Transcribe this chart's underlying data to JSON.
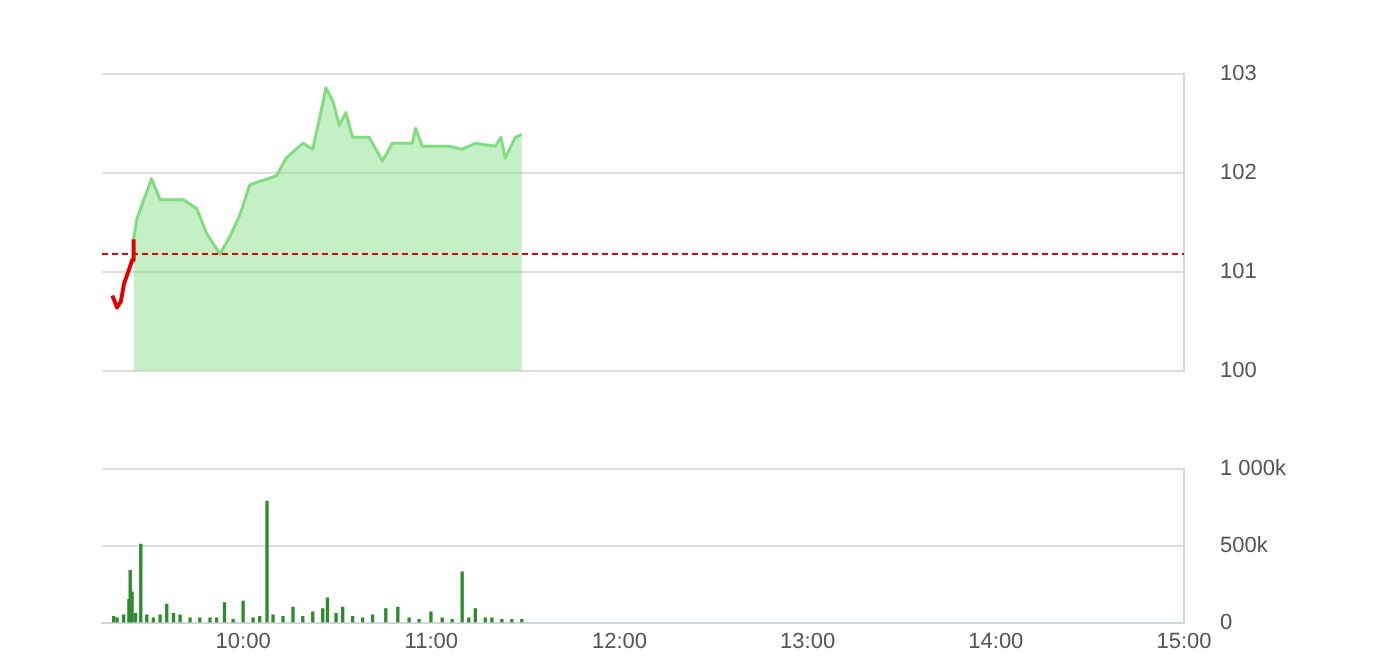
{
  "chart_data": [
    {
      "type": "area",
      "xlim": [
        9.25,
        15
      ],
      "ylim": [
        100,
        103
      ],
      "yticks": [
        100,
        101,
        102,
        103
      ],
      "tick_labels": "y",
      "grid": "y",
      "legend": false,
      "marker": "none",
      "ref_lines": [
        {
          "axis": "y",
          "value": 101.18,
          "color": "#e00000",
          "line_style": "dashed"
        }
      ],
      "series": [
        {
          "type": "line",
          "color": "#e00000",
          "x": [
            9.305,
            9.33,
            9.35,
            9.367,
            9.395,
            9.41,
            9.418
          ],
          "values": [
            100.76,
            100.64,
            100.7,
            100.88,
            101.03,
            101.12,
            101.33
          ]
        },
        {
          "type": "area",
          "color": "#7fdc7f",
          "x": [
            9.418,
            9.436,
            9.513,
            9.559,
            9.612,
            9.683,
            9.753,
            9.806,
            9.877,
            9.93,
            9.982,
            10.035,
            10.176,
            10.229,
            10.317,
            10.37,
            10.405,
            10.44,
            10.476,
            10.511,
            10.546,
            10.582,
            10.67,
            10.74,
            10.793,
            10.899,
            10.917,
            10.952,
            11.093,
            11.164,
            11.234,
            11.34,
            11.37,
            11.393,
            11.446,
            11.481
          ],
          "values": [
            101.33,
            101.54,
            101.94,
            101.73,
            101.73,
            101.73,
            101.64,
            101.39,
            101.18,
            101.36,
            101.57,
            101.88,
            101.97,
            102.15,
            102.3,
            102.24,
            102.54,
            102.86,
            102.73,
            102.48,
            102.61,
            102.36,
            102.36,
            102.12,
            102.3,
            102.3,
            102.45,
            102.27,
            102.27,
            102.24,
            102.3,
            102.27,
            102.36,
            102.15,
            102.36,
            102.39
          ]
        }
      ]
    },
    {
      "type": "bar",
      "xlim": [
        9.25,
        15
      ],
      "xticks": [
        {
          "value": 10,
          "label": "10:00"
        },
        {
          "value": 11,
          "label": "11:00"
        },
        {
          "value": 12,
          "label": "12:00"
        },
        {
          "value": 13,
          "label": "13:00"
        },
        {
          "value": 14,
          "label": "14:00"
        },
        {
          "value": 15,
          "label": "15:00"
        }
      ],
      "ylim": [
        0,
        1000
      ],
      "yticks": [
        {
          "value": 0,
          "label": "0"
        },
        {
          "value": 500,
          "label": "500k"
        },
        {
          "value": 1000,
          "label": "1 000k"
        }
      ],
      "grid": "y",
      "legend": false,
      "x": [
        9.312,
        9.33,
        9.365,
        9.393,
        9.4,
        9.41,
        9.428,
        9.456,
        9.488,
        9.523,
        9.559,
        9.594,
        9.63,
        9.665,
        9.718,
        9.77,
        9.824,
        9.859,
        9.901,
        9.947,
        10.0,
        10.053,
        10.088,
        10.127,
        10.159,
        10.212,
        10.265,
        10.317,
        10.37,
        10.423,
        10.448,
        10.494,
        10.529,
        10.582,
        10.635,
        10.688,
        10.758,
        10.822,
        10.882,
        10.935,
        10.998,
        11.058,
        11.111,
        11.164,
        11.199,
        11.234,
        11.287,
        11.322,
        11.375,
        11.428,
        11.481
      ],
      "series": [
        {
          "color": "#2e8b2e",
          "values": [
            40,
            30,
            50,
            150,
            340,
            200,
            60,
            510,
            50,
            30,
            50,
            120,
            60,
            50,
            30,
            30,
            30,
            30,
            130,
            20,
            140,
            30,
            40,
            790,
            50,
            40,
            100,
            40,
            70,
            90,
            160,
            60,
            100,
            40,
            30,
            50,
            90,
            100,
            30,
            20,
            70,
            30,
            20,
            330,
            30,
            90,
            30,
            30,
            20,
            20,
            20
          ]
        }
      ]
    }
  ]
}
